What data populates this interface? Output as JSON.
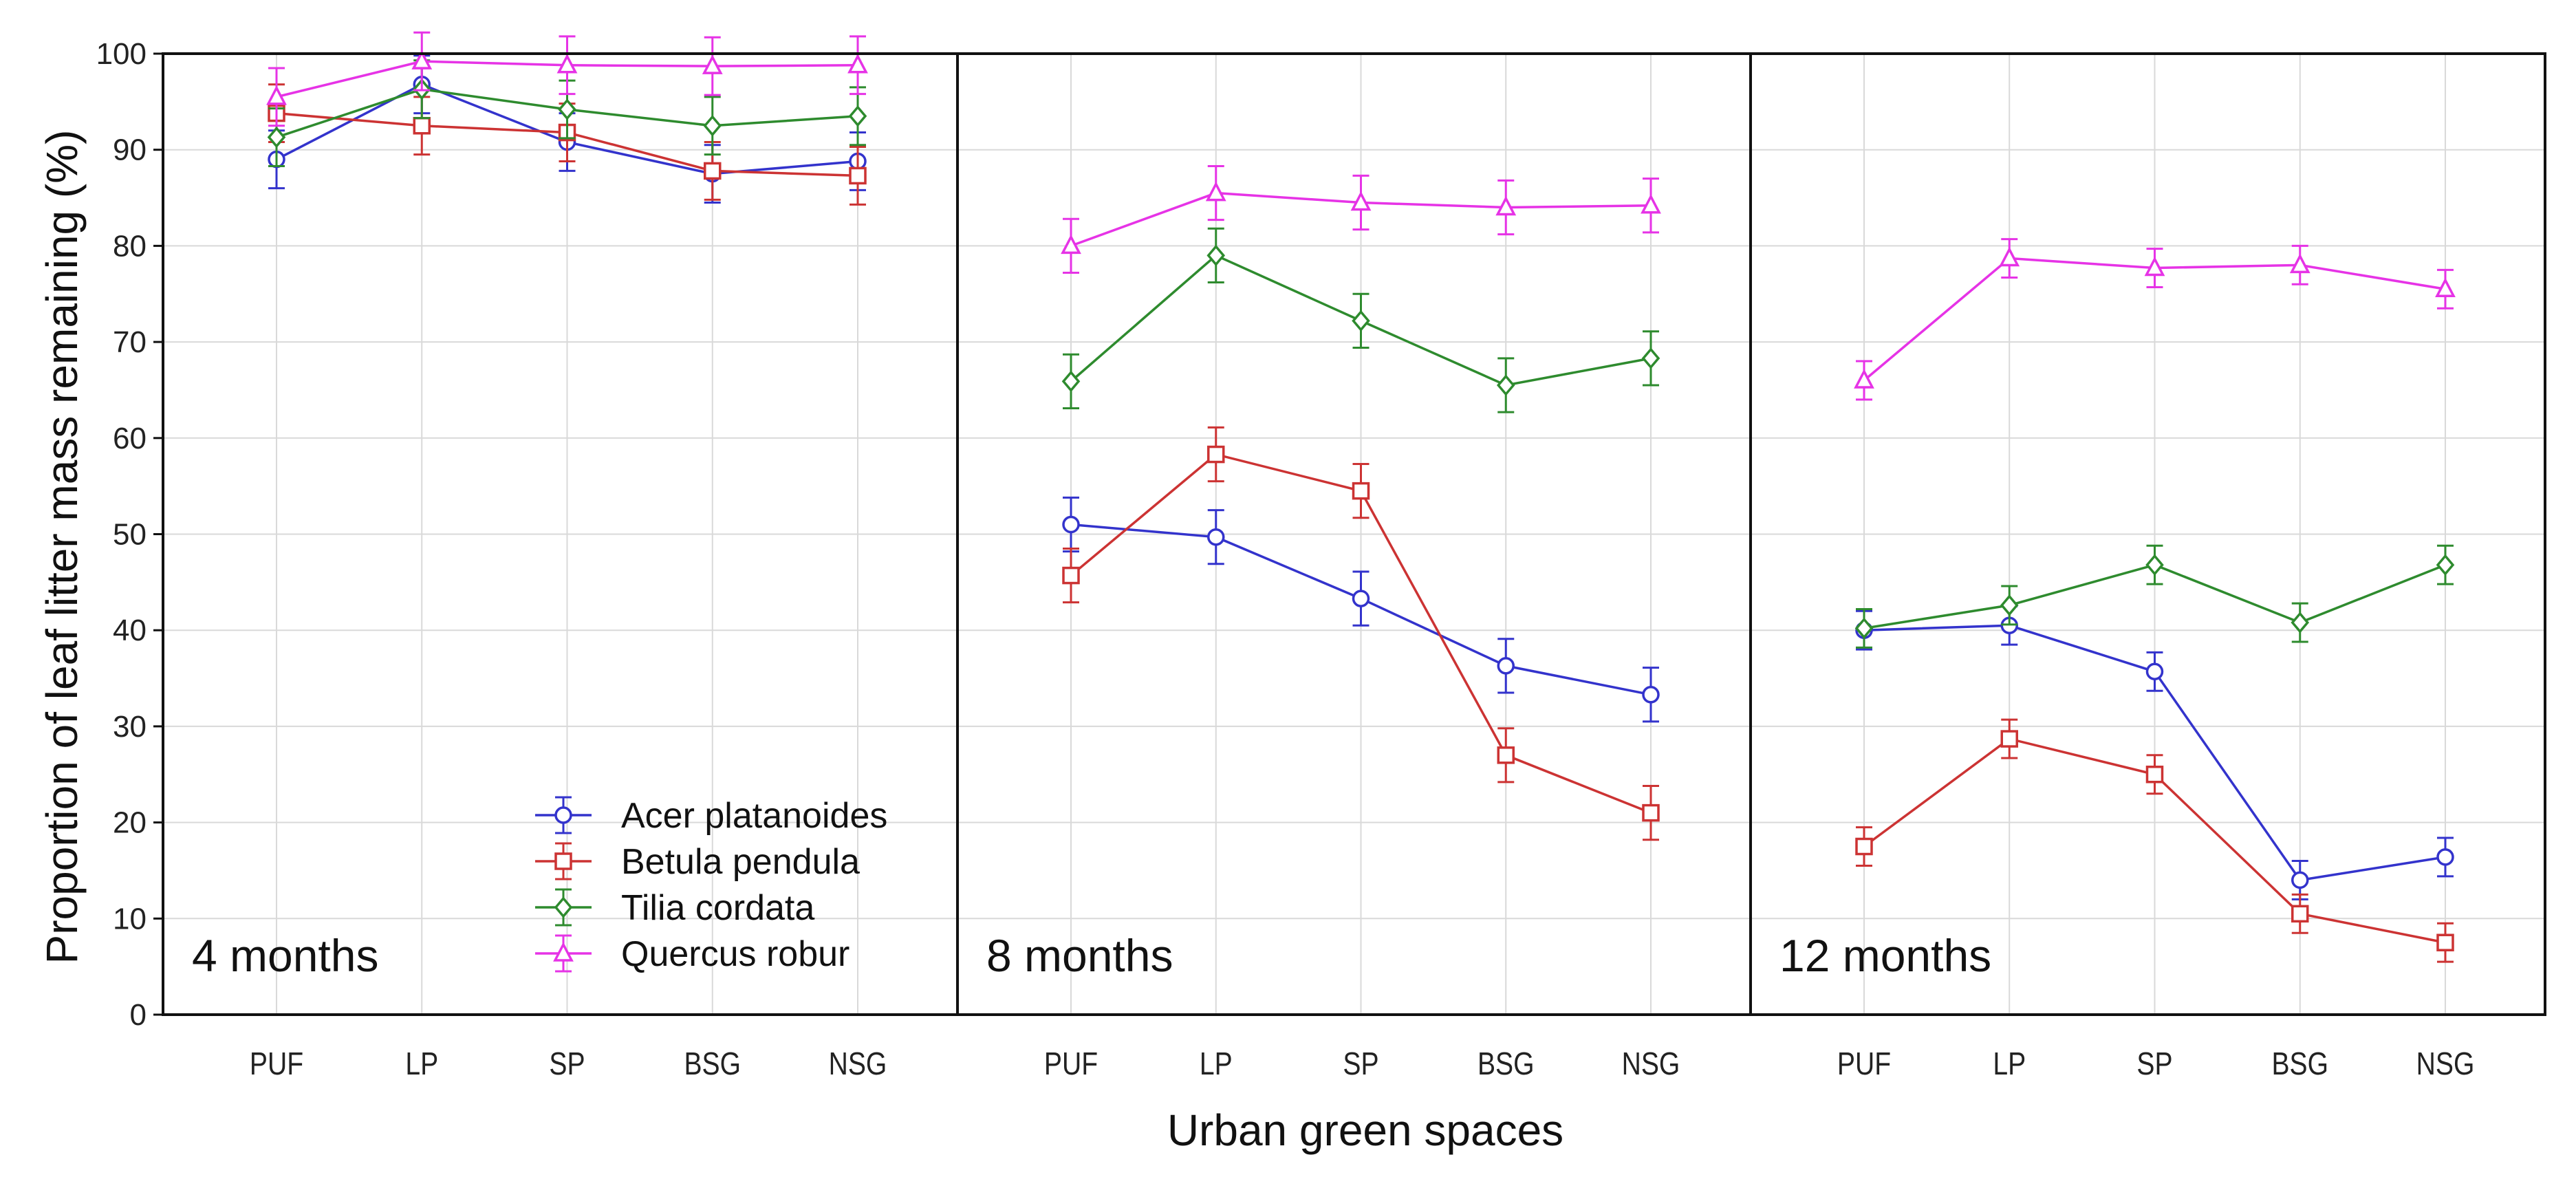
{
  "chart_data": {
    "type": "line",
    "ylabel": "Proportion of leaf litter mass remaining (%)",
    "xlabel": "Urban green spaces",
    "ylim": [
      0,
      100
    ],
    "yticks": [
      "0",
      "10",
      "20",
      "30",
      "40",
      "50",
      "60",
      "70",
      "80",
      "90",
      "100"
    ],
    "grid": true,
    "categories": [
      "PUF",
      "LP",
      "SP",
      "BSG",
      "NSG"
    ],
    "legend": {
      "placement": "inside first panel, bottom-right",
      "entries": [
        "Acer platanoides",
        "Betula pendula",
        "Tilia cordata",
        "Quercus robur"
      ]
    },
    "series_styles": [
      {
        "name": "Acer platanoides",
        "color": "#3333cc",
        "marker": "circle"
      },
      {
        "name": "Betula pendula",
        "color": "#cc3333",
        "marker": "square"
      },
      {
        "name": "Tilia cordata",
        "color": "#2e8b2e",
        "marker": "diamond"
      },
      {
        "name": "Quercus robur",
        "color": "#e633e6",
        "marker": "triangle"
      }
    ],
    "panels": [
      {
        "label": "4 months",
        "series": [
          {
            "name": "Acer platanoides",
            "values": [
              89,
              96.8,
              90.8,
              87.5,
              88.8
            ],
            "errors": [
              3,
              3,
              3,
              3,
              3
            ]
          },
          {
            "name": "Betula pendula",
            "values": [
              93.8,
              92.5,
              91.8,
              87.8,
              87.3
            ],
            "errors": [
              3,
              3,
              3,
              3,
              3
            ]
          },
          {
            "name": "Tilia cordata",
            "values": [
              91.3,
              96.3,
              94.2,
              92.5,
              93.5
            ],
            "errors": [
              3,
              3,
              3,
              3,
              3
            ]
          },
          {
            "name": "Quercus robur",
            "values": [
              95.5,
              99.2,
              98.8,
              98.7,
              98.8
            ],
            "errors": [
              3,
              3,
              3,
              3,
              3
            ]
          }
        ]
      },
      {
        "label": "8 months",
        "series": [
          {
            "name": "Acer platanoides",
            "values": [
              51,
              49.7,
              43.3,
              36.3,
              33.3
            ],
            "errors": [
              2.8,
              2.8,
              2.8,
              2.8,
              2.8
            ]
          },
          {
            "name": "Betula pendula",
            "values": [
              45.7,
              58.3,
              54.5,
              27,
              21
            ],
            "errors": [
              2.8,
              2.8,
              2.8,
              2.8,
              2.8
            ]
          },
          {
            "name": "Tilia cordata",
            "values": [
              65.9,
              79,
              72.2,
              65.5,
              68.3
            ],
            "errors": [
              2.8,
              2.8,
              2.8,
              2.8,
              2.8
            ]
          },
          {
            "name": "Quercus robur",
            "values": [
              80,
              85.5,
              84.5,
              84,
              84.2
            ],
            "errors": [
              2.8,
              2.8,
              2.8,
              2.8,
              2.8
            ]
          }
        ]
      },
      {
        "label": "12 months",
        "series": [
          {
            "name": "Acer platanoides",
            "values": [
              40,
              40.5,
              35.7,
              14,
              16.4
            ],
            "errors": [
              2,
              2,
              2,
              2,
              2
            ]
          },
          {
            "name": "Betula pendula",
            "values": [
              17.5,
              28.7,
              25,
              10.5,
              7.5
            ],
            "errors": [
              2,
              2,
              2,
              2,
              2
            ]
          },
          {
            "name": "Tilia cordata",
            "values": [
              40.2,
              42.6,
              46.8,
              40.8,
              46.8
            ],
            "errors": [
              2,
              2,
              2,
              2,
              2
            ]
          },
          {
            "name": "Quercus robur",
            "values": [
              66,
              78.7,
              77.7,
              78,
              75.5
            ],
            "errors": [
              2,
              2,
              2,
              2,
              2
            ]
          }
        ]
      }
    ]
  }
}
